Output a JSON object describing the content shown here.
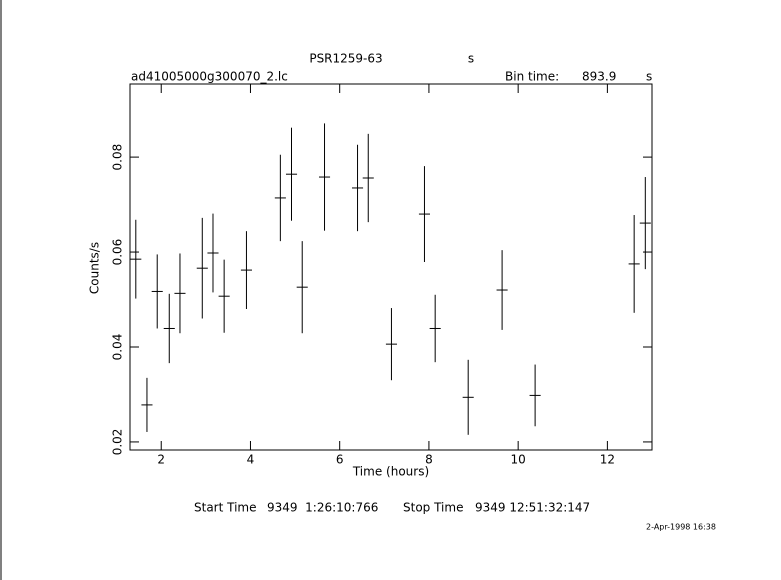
{
  "chart_data": {
    "type": "errorbar",
    "title": "PSR1259-63",
    "title_note": "s",
    "subtitle": "ad41005000g300070_2.lc",
    "bin_time_label": "Bin time:",
    "bin_time": 893.9,
    "bin_time_unit": "s",
    "x_label": "Time (hours)",
    "y_label": "Counts/s",
    "x": [
      1.43,
      1.68,
      1.91,
      2.18,
      2.42,
      2.92,
      3.16,
      3.41,
      3.91,
      4.67,
      4.92,
      5.16,
      5.66,
      6.4,
      6.64,
      7.16,
      7.9,
      8.14,
      8.88,
      9.64,
      10.38,
      12.6,
      12.85
    ],
    "values": [
      0.0585,
      0.0278,
      0.0517,
      0.0439,
      0.0513,
      0.0566,
      0.0598,
      0.0507,
      0.0562,
      0.0714,
      0.0764,
      0.0526,
      0.0758,
      0.0735,
      0.0756,
      0.0406,
      0.068,
      0.0439,
      0.0294,
      0.052,
      0.0298,
      0.0575,
      0.0661
    ],
    "errors": [
      0.0083,
      0.0057,
      0.0078,
      0.0073,
      0.0084,
      0.0106,
      0.0083,
      0.0077,
      0.0082,
      0.0091,
      0.0098,
      0.0097,
      0.0113,
      0.0091,
      0.0093,
      0.0076,
      0.0101,
      0.0071,
      0.0079,
      0.0084,
      0.0065,
      0.0103,
      0.0097
    ],
    "color": "#000000",
    "xlim": [
      1.3,
      13.0
    ],
    "xticks": [
      2,
      4,
      6,
      8,
      10,
      12
    ],
    "ylim": [
      0.0183,
      0.0954
    ],
    "yticks": [
      0.02,
      0.04,
      0.06,
      0.08
    ],
    "start_time_label": "Start Time",
    "start_time": "9349  1:26:10:766",
    "stop_time_label": "Stop Time",
    "stop_time": "9349 12:51:32:147",
    "date": "2-Apr-1998 16:38"
  }
}
